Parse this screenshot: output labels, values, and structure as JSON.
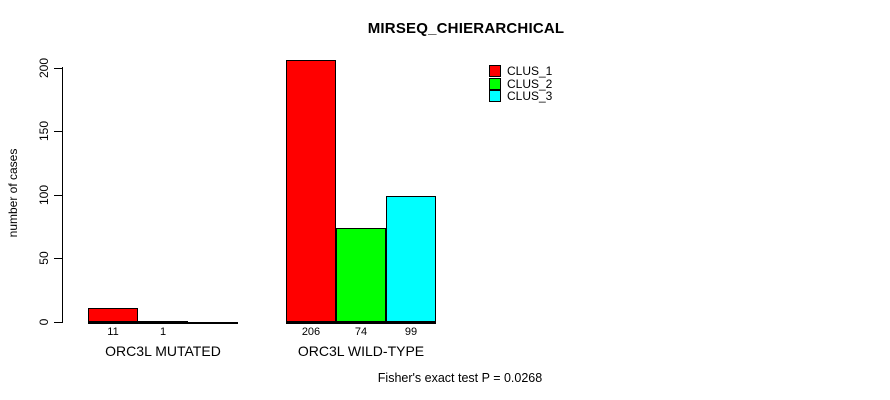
{
  "chart_data": {
    "type": "bar",
    "title": "MIRSEQ_CHIERARCHICAL",
    "xlabel": "",
    "ylabel": "number of cases",
    "ylim": [
      0,
      200
    ],
    "yticks": [
      0,
      50,
      100,
      150,
      200
    ],
    "categories": [
      "ORC3L MUTATED",
      "ORC3L WILD-TYPE"
    ],
    "series": [
      {
        "name": "CLUS_1",
        "color": "#ff0000",
        "values": [
          11,
          206
        ]
      },
      {
        "name": "CLUS_2",
        "color": "#00ff00",
        "values": [
          1,
          74
        ]
      },
      {
        "name": "CLUS_3",
        "color": "#00ffff",
        "values": [
          0,
          99
        ]
      }
    ],
    "bar_value_labels": {
      "ORC3L MUTATED": [
        "11",
        "1",
        ""
      ],
      "ORC3L WILD-TYPE": [
        "206",
        "74",
        "99"
      ]
    },
    "legend_position": "top-right",
    "grid": false
  },
  "footer": {
    "text": "Fisher's exact test P = 0.0268"
  }
}
